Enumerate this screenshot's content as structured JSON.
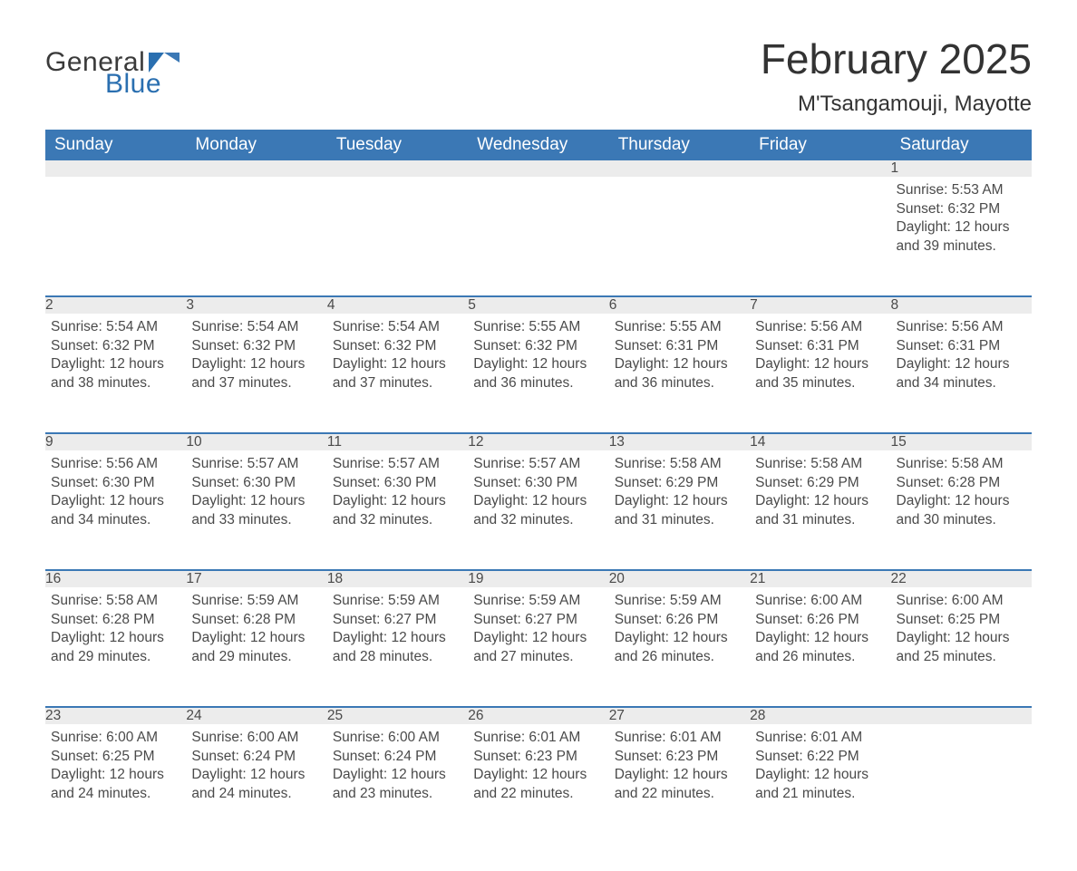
{
  "logo": {
    "word1": "General",
    "word2": "Blue",
    "color_word1": "#3a3a3a",
    "color_word2": "#2a6fb0",
    "flag_colors": [
      "#2a6fb0",
      "#3b78b5"
    ]
  },
  "title": "February 2025",
  "location": "M'Tsangamouji, Mayotte",
  "theme": {
    "header_bg": "#3b78b5",
    "header_text": "#ffffff",
    "daynum_bg": "#ececec",
    "daynum_text": "#555555",
    "body_text": "#4a4a4a",
    "row_border": "#3b78b5",
    "page_bg": "#ffffff",
    "title_fontsize": 46,
    "location_fontsize": 24,
    "header_fontsize": 19,
    "body_fontsize": 15.5
  },
  "columns": [
    "Sunday",
    "Monday",
    "Tuesday",
    "Wednesday",
    "Thursday",
    "Friday",
    "Saturday"
  ],
  "weeks": [
    [
      null,
      null,
      null,
      null,
      null,
      null,
      {
        "n": "1",
        "sunrise": "5:53 AM",
        "sunset": "6:32 PM",
        "daylight": "12 hours and 39 minutes."
      }
    ],
    [
      {
        "n": "2",
        "sunrise": "5:54 AM",
        "sunset": "6:32 PM",
        "daylight": "12 hours and 38 minutes."
      },
      {
        "n": "3",
        "sunrise": "5:54 AM",
        "sunset": "6:32 PM",
        "daylight": "12 hours and 37 minutes."
      },
      {
        "n": "4",
        "sunrise": "5:54 AM",
        "sunset": "6:32 PM",
        "daylight": "12 hours and 37 minutes."
      },
      {
        "n": "5",
        "sunrise": "5:55 AM",
        "sunset": "6:32 PM",
        "daylight": "12 hours and 36 minutes."
      },
      {
        "n": "6",
        "sunrise": "5:55 AM",
        "sunset": "6:31 PM",
        "daylight": "12 hours and 36 minutes."
      },
      {
        "n": "7",
        "sunrise": "5:56 AM",
        "sunset": "6:31 PM",
        "daylight": "12 hours and 35 minutes."
      },
      {
        "n": "8",
        "sunrise": "5:56 AM",
        "sunset": "6:31 PM",
        "daylight": "12 hours and 34 minutes."
      }
    ],
    [
      {
        "n": "9",
        "sunrise": "5:56 AM",
        "sunset": "6:30 PM",
        "daylight": "12 hours and 34 minutes."
      },
      {
        "n": "10",
        "sunrise": "5:57 AM",
        "sunset": "6:30 PM",
        "daylight": "12 hours and 33 minutes."
      },
      {
        "n": "11",
        "sunrise": "5:57 AM",
        "sunset": "6:30 PM",
        "daylight": "12 hours and 32 minutes."
      },
      {
        "n": "12",
        "sunrise": "5:57 AM",
        "sunset": "6:30 PM",
        "daylight": "12 hours and 32 minutes."
      },
      {
        "n": "13",
        "sunrise": "5:58 AM",
        "sunset": "6:29 PM",
        "daylight": "12 hours and 31 minutes."
      },
      {
        "n": "14",
        "sunrise": "5:58 AM",
        "sunset": "6:29 PM",
        "daylight": "12 hours and 31 minutes."
      },
      {
        "n": "15",
        "sunrise": "5:58 AM",
        "sunset": "6:28 PM",
        "daylight": "12 hours and 30 minutes."
      }
    ],
    [
      {
        "n": "16",
        "sunrise": "5:58 AM",
        "sunset": "6:28 PM",
        "daylight": "12 hours and 29 minutes."
      },
      {
        "n": "17",
        "sunrise": "5:59 AM",
        "sunset": "6:28 PM",
        "daylight": "12 hours and 29 minutes."
      },
      {
        "n": "18",
        "sunrise": "5:59 AM",
        "sunset": "6:27 PM",
        "daylight": "12 hours and 28 minutes."
      },
      {
        "n": "19",
        "sunrise": "5:59 AM",
        "sunset": "6:27 PM",
        "daylight": "12 hours and 27 minutes."
      },
      {
        "n": "20",
        "sunrise": "5:59 AM",
        "sunset": "6:26 PM",
        "daylight": "12 hours and 26 minutes."
      },
      {
        "n": "21",
        "sunrise": "6:00 AM",
        "sunset": "6:26 PM",
        "daylight": "12 hours and 26 minutes."
      },
      {
        "n": "22",
        "sunrise": "6:00 AM",
        "sunset": "6:25 PM",
        "daylight": "12 hours and 25 minutes."
      }
    ],
    [
      {
        "n": "23",
        "sunrise": "6:00 AM",
        "sunset": "6:25 PM",
        "daylight": "12 hours and 24 minutes."
      },
      {
        "n": "24",
        "sunrise": "6:00 AM",
        "sunset": "6:24 PM",
        "daylight": "12 hours and 24 minutes."
      },
      {
        "n": "25",
        "sunrise": "6:00 AM",
        "sunset": "6:24 PM",
        "daylight": "12 hours and 23 minutes."
      },
      {
        "n": "26",
        "sunrise": "6:01 AM",
        "sunset": "6:23 PM",
        "daylight": "12 hours and 22 minutes."
      },
      {
        "n": "27",
        "sunrise": "6:01 AM",
        "sunset": "6:23 PM",
        "daylight": "12 hours and 22 minutes."
      },
      {
        "n": "28",
        "sunrise": "6:01 AM",
        "sunset": "6:22 PM",
        "daylight": "12 hours and 21 minutes."
      },
      null
    ]
  ],
  "labels": {
    "sunrise": "Sunrise:",
    "sunset": "Sunset:",
    "daylight": "Daylight:"
  }
}
